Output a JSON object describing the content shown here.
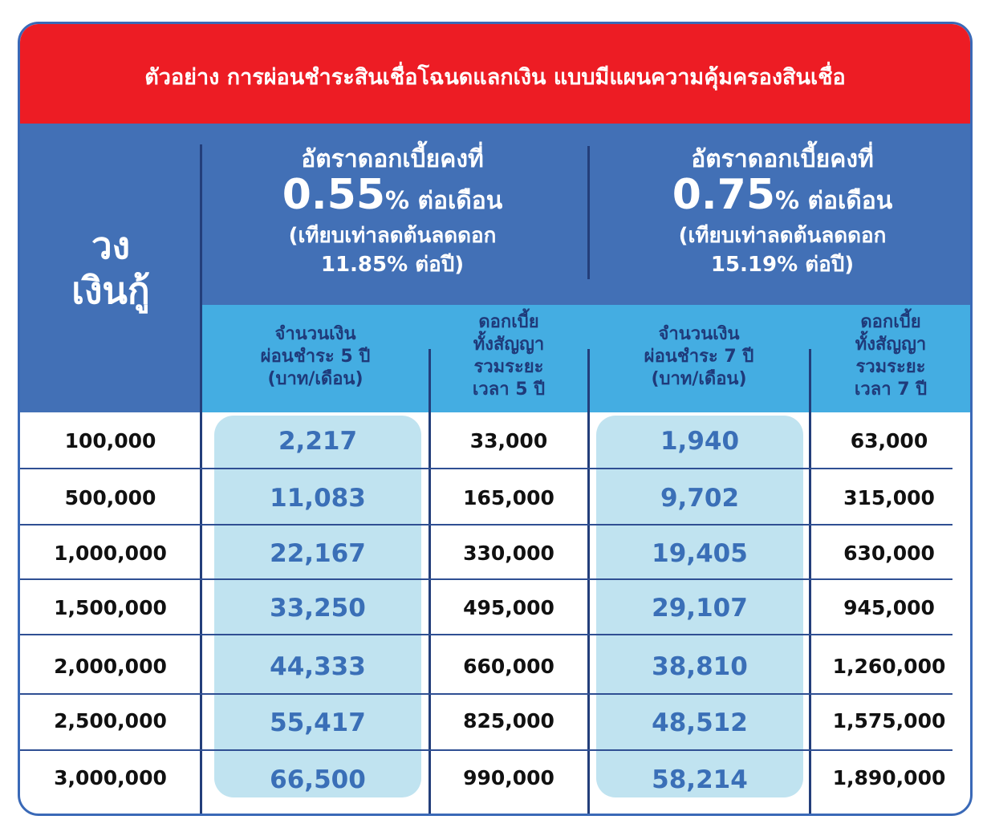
{
  "title": "ตัวอย่าง การผ่อนชำระสินเชื่อโฉนดแลกเงิน แบบมีแผนความคุ้มครองสินเชื่อ",
  "loan_header": [
    "วง",
    "เงินกู้"
  ],
  "plans": [
    {
      "label": "อัตราดอกเบี้ยคงที่",
      "rate": "0.55",
      "rate_unit": "% ต่อเดือน",
      "equiv_line1": "(เทียบเท่าลดต้นลดดอก",
      "equiv_line2": "11.85% ต่อปี)",
      "payment_header": [
        "จำนวนเงิน",
        "ผ่อนชำระ 5 ปี",
        "(บาท/เดือน)"
      ],
      "interest_header": [
        "ดอกเบี้ย",
        "ทั้งสัญญา",
        "รวมระยะ",
        "เวลา 5 ปี"
      ]
    },
    {
      "label": "อัตราดอกเบี้ยคงที่",
      "rate": "0.75",
      "rate_unit": "% ต่อเดือน",
      "equiv_line1": "(เทียบเท่าลดต้นลดดอก",
      "equiv_line2": "15.19% ต่อปี)",
      "payment_header": [
        "จำนวนเงิน",
        "ผ่อนชำระ 7 ปี",
        "(บาท/เดือน)"
      ],
      "interest_header": [
        "ดอกเบี้ย",
        "ทั้งสัญญา",
        "รวมระยะ",
        "เวลา 7 ปี"
      ]
    }
  ],
  "rows": [
    {
      "loan": "100,000",
      "pay5": "2,217",
      "int5": "33,000",
      "pay7": "1,940",
      "int7": "63,000"
    },
    {
      "loan": "500,000",
      "pay5": "11,083",
      "int5": "165,000",
      "pay7": "9,702",
      "int7": "315,000"
    },
    {
      "loan": "1,000,000",
      "pay5": "22,167",
      "int5": "330,000",
      "pay7": "19,405",
      "int7": "630,000"
    },
    {
      "loan": "1,500,000",
      "pay5": "33,250",
      "int5": "495,000",
      "pay7": "29,107",
      "int7": "945,000"
    },
    {
      "loan": "2,000,000",
      "pay5": "44,333",
      "int5": "660,000",
      "pay7": "38,810",
      "int7": "1,260,000"
    },
    {
      "loan": "2,500,000",
      "pay5": "55,417",
      "int5": "825,000",
      "pay7": "48,512",
      "int7": "1,575,000"
    },
    {
      "loan": "3,000,000",
      "pay5": "66,500",
      "int5": "990,000",
      "pay7": "58,214",
      "int7": "1,890,000"
    }
  ],
  "colors": {
    "title_bg": "#ed1c24",
    "header_blue": "#4270b6",
    "subheader_blue": "#44ade2",
    "highlight": "#c0e3f0",
    "highlight_text": "#3a6fb7",
    "border": "#3a69b7"
  }
}
